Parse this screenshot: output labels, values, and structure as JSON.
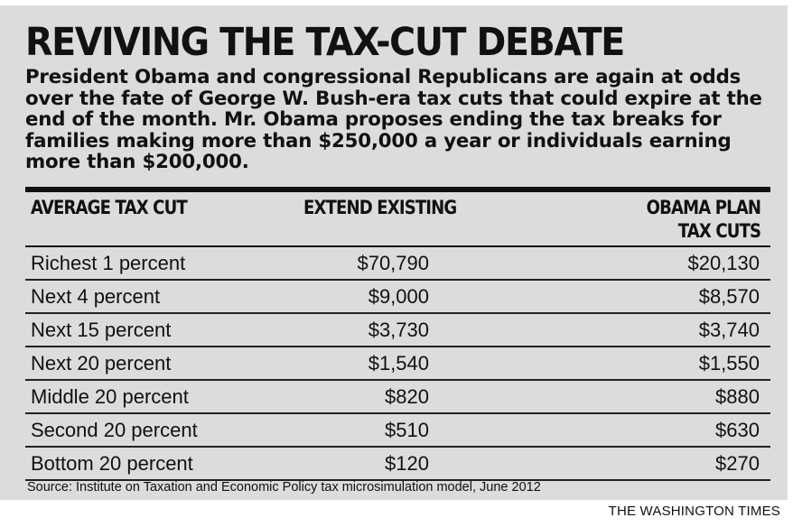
{
  "title": "REVIVING THE TAX-CUT DEBATE",
  "intro": "President Obama and congressional Republicans are again at odds over the fate of George W. Bush-era tax cuts that could expire at the end of the month. Mr. Obama proposes ending the tax breaks for families making more than $250,000 a year or individuals earning more than $200,000.",
  "table": {
    "headers": {
      "col1": "AVERAGE TAX CUT",
      "col2": "EXTEND EXISTING",
      "col3_line1": "OBAMA PLAN",
      "col3_line2": "TAX CUTS"
    },
    "rows": [
      {
        "label": "Richest 1 percent",
        "extend": "$70,790",
        "obama": "$20,130"
      },
      {
        "label": "Next 4 percent",
        "extend": "$9,000",
        "obama": "$8,570"
      },
      {
        "label": "Next 15 percent",
        "extend": "$3,730",
        "obama": "$3,740"
      },
      {
        "label": "Next 20 percent",
        "extend": "$1,540",
        "obama": "$1,550"
      },
      {
        "label": "Middle 20 percent",
        "extend": "$820",
        "obama": "$880"
      },
      {
        "label": "Second 20 percent",
        "extend": "$510",
        "obama": "$630"
      },
      {
        "label": "Bottom 20 percent",
        "extend": "$120",
        "obama": "$270"
      }
    ]
  },
  "source": "Source: Institute on Taxation and Economic Policy tax microsimulation model, June 2012",
  "credit": "THE WASHINGTON TIMES",
  "colors": {
    "panel_background": "#dcdcdc",
    "text": "#111111",
    "page_background": "#ffffff"
  },
  "chart_data": {
    "type": "table",
    "title": "REVIVING THE TAX-CUT DEBATE",
    "columns": [
      "AVERAGE TAX CUT",
      "EXTEND EXISTING",
      "OBAMA PLAN TAX CUTS"
    ],
    "categories": [
      "Richest 1 percent",
      "Next 4 percent",
      "Next 15 percent",
      "Next 20 percent",
      "Middle 20 percent",
      "Second 20 percent",
      "Bottom 20 percent"
    ],
    "series": [
      {
        "name": "EXTEND EXISTING",
        "values": [
          70790,
          9000,
          3730,
          1540,
          820,
          510,
          120
        ]
      },
      {
        "name": "OBAMA PLAN TAX CUTS",
        "values": [
          20130,
          8570,
          3740,
          1550,
          880,
          630,
          270
        ]
      }
    ]
  }
}
